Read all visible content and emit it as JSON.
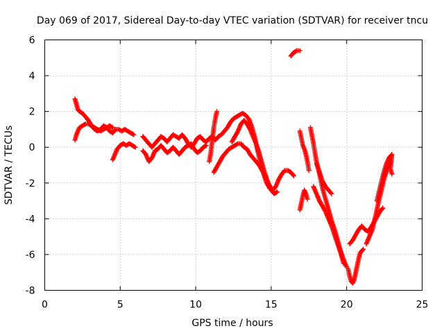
{
  "chart_data": {
    "type": "scatter",
    "title": "Day 069 of 2017, Sidereal Day-to-day VTEC variation (SDTVAR) for receiver tncu",
    "xlabel": "GPS time / hours",
    "ylabel": "SDTVAR / TECUs",
    "xlim": [
      0,
      25
    ],
    "ylim": [
      -8,
      6
    ],
    "xticks": [
      0,
      5,
      10,
      15,
      20,
      25
    ],
    "yticks": [
      -8,
      -6,
      -4,
      -2,
      0,
      2,
      4,
      6
    ],
    "xtick_labels": [
      "0",
      "5",
      "10",
      "15",
      "20",
      "25"
    ],
    "ytick_labels": [
      "-8",
      "-6",
      "-4",
      "-2",
      "0",
      "2",
      "4",
      "6"
    ],
    "grid": true,
    "legend": "none",
    "marker": "plus",
    "color": "#ff0000",
    "series": [
      {
        "points": [
          [
            2.0,
            2.7
          ],
          [
            2.1,
            2.4
          ],
          [
            2.2,
            2.1
          ],
          [
            2.3,
            2.0
          ],
          [
            2.5,
            1.9
          ],
          [
            2.7,
            1.7
          ],
          [
            2.9,
            1.5
          ],
          [
            3.1,
            1.2
          ],
          [
            3.3,
            1.0
          ],
          [
            3.5,
            0.9
          ],
          [
            3.7,
            1.0
          ],
          [
            3.9,
            1.2
          ],
          [
            4.1,
            1.1
          ],
          [
            4.3,
            0.9
          ],
          [
            4.5,
            0.8
          ],
          [
            4.7,
            1.0
          ],
          [
            4.9,
            1.0
          ],
          [
            5.1,
            0.9
          ],
          [
            5.3,
            1.0
          ],
          [
            5.5,
            0.9
          ],
          [
            5.7,
            0.8
          ],
          [
            5.9,
            0.7
          ]
        ]
      },
      {
        "points": [
          [
            2.0,
            0.4
          ],
          [
            2.1,
            0.7
          ],
          [
            2.2,
            0.9
          ],
          [
            2.3,
            1.1
          ],
          [
            2.5,
            1.2
          ],
          [
            2.7,
            1.3
          ],
          [
            2.9,
            1.3
          ],
          [
            3.1,
            1.2
          ],
          [
            3.3,
            1.1
          ],
          [
            3.5,
            1.0
          ],
          [
            3.7,
            0.9
          ],
          [
            3.9,
            1.0
          ],
          [
            4.1,
            1.1
          ],
          [
            4.3,
            1.2
          ],
          [
            4.5,
            1.1
          ]
        ]
      },
      {
        "points": [
          [
            4.5,
            -0.7
          ],
          [
            4.6,
            -0.5
          ],
          [
            4.7,
            -0.3
          ],
          [
            4.8,
            -0.1
          ],
          [
            5.0,
            0.1
          ],
          [
            5.2,
            0.2
          ],
          [
            5.4,
            0.1
          ],
          [
            5.6,
            0.2
          ],
          [
            5.8,
            0.1
          ],
          [
            6.0,
            0.0
          ]
        ]
      },
      {
        "points": [
          [
            6.5,
            0.6
          ],
          [
            6.7,
            0.4
          ],
          [
            6.9,
            0.2
          ],
          [
            7.1,
            0.0
          ],
          [
            7.3,
            0.2
          ],
          [
            7.5,
            0.4
          ],
          [
            7.7,
            0.6
          ],
          [
            7.9,
            0.5
          ],
          [
            8.1,
            0.3
          ],
          [
            8.3,
            0.5
          ],
          [
            8.5,
            0.7
          ],
          [
            8.7,
            0.6
          ],
          [
            8.9,
            0.5
          ],
          [
            9.1,
            0.7
          ],
          [
            9.3,
            0.5
          ],
          [
            9.5,
            0.2
          ],
          [
            9.7,
            0.0
          ],
          [
            9.9,
            0.2
          ],
          [
            10.1,
            0.5
          ],
          [
            10.3,
            0.6
          ],
          [
            10.5,
            0.4
          ],
          [
            10.7,
            0.3
          ],
          [
            10.9,
            0.5
          ],
          [
            11.1,
            0.6
          ],
          [
            11.3,
            0.4
          ],
          [
            11.5,
            0.6
          ],
          [
            11.7,
            0.7
          ],
          [
            11.9,
            0.9
          ],
          [
            12.1,
            1.1
          ],
          [
            12.3,
            1.4
          ],
          [
            12.5,
            1.6
          ],
          [
            12.7,
            1.7
          ],
          [
            12.9,
            1.8
          ],
          [
            13.1,
            1.9
          ],
          [
            13.3,
            1.8
          ],
          [
            13.5,
            1.6
          ],
          [
            13.7,
            1.2
          ],
          [
            13.9,
            0.6
          ],
          [
            14.1,
            -0.2
          ],
          [
            14.3,
            -0.9
          ],
          [
            14.5,
            -1.5
          ],
          [
            14.7,
            -2.0
          ],
          [
            14.9,
            -2.3
          ],
          [
            15.1,
            -2.4
          ],
          [
            15.3,
            -2.2
          ],
          [
            15.5,
            -1.8
          ],
          [
            15.7,
            -1.5
          ],
          [
            15.9,
            -1.3
          ],
          [
            16.1,
            -1.3
          ],
          [
            16.3,
            -1.4
          ],
          [
            16.5,
            -1.6
          ]
        ]
      },
      {
        "points": [
          [
            6.5,
            -0.2
          ],
          [
            6.7,
            -0.4
          ],
          [
            6.9,
            -0.8
          ],
          [
            7.1,
            -0.6
          ],
          [
            7.3,
            -0.2
          ],
          [
            7.5,
            -0.1
          ],
          [
            7.7,
            0.1
          ],
          [
            7.9,
            -0.1
          ],
          [
            8.1,
            -0.3
          ],
          [
            8.3,
            -0.2
          ],
          [
            8.5,
            0.0
          ],
          [
            8.7,
            -0.2
          ],
          [
            8.9,
            -0.4
          ],
          [
            9.1,
            -0.2
          ],
          [
            9.3,
            0.0
          ],
          [
            9.5,
            0.1
          ],
          [
            9.7,
            0.2
          ],
          [
            9.9,
            -0.1
          ],
          [
            10.1,
            -0.3
          ],
          [
            10.3,
            -0.2
          ],
          [
            10.5,
            0.0
          ],
          [
            10.7,
            0.1
          ]
        ]
      },
      {
        "points": [
          [
            10.9,
            -0.8
          ],
          [
            11.0,
            -0.3
          ],
          [
            11.1,
            0.4
          ],
          [
            11.2,
            1.1
          ],
          [
            11.3,
            1.6
          ],
          [
            11.4,
            2.0
          ]
        ]
      },
      {
        "points": [
          [
            11.2,
            -1.4
          ],
          [
            11.4,
            -1.1
          ],
          [
            11.6,
            -0.8
          ],
          [
            11.8,
            -0.5
          ],
          [
            12.0,
            -0.3
          ],
          [
            12.2,
            -0.1
          ],
          [
            12.4,
            0.0
          ],
          [
            12.6,
            0.1
          ],
          [
            12.8,
            0.2
          ],
          [
            13.0,
            0.2
          ],
          [
            13.2,
            0.0
          ],
          [
            13.4,
            -0.1
          ],
          [
            13.6,
            -0.4
          ],
          [
            13.8,
            -0.6
          ],
          [
            14.0,
            -0.8
          ],
          [
            14.2,
            -1.0
          ],
          [
            14.4,
            -1.3
          ],
          [
            14.6,
            -1.6
          ],
          [
            14.8,
            -2.0
          ],
          [
            15.0,
            -2.4
          ],
          [
            15.2,
            -2.6
          ],
          [
            15.4,
            -2.5
          ]
        ]
      },
      {
        "points": [
          [
            12.4,
            0.3
          ],
          [
            12.6,
            0.6
          ],
          [
            12.8,
            0.9
          ],
          [
            13.0,
            1.3
          ],
          [
            13.2,
            1.5
          ],
          [
            13.4,
            1.3
          ],
          [
            13.6,
            1.0
          ],
          [
            13.8,
            0.6
          ],
          [
            14.0,
            0.2
          ],
          [
            14.2,
            -0.3
          ],
          [
            14.4,
            -0.9
          ],
          [
            14.6,
            -1.5
          ],
          [
            14.8,
            -2.0
          ],
          [
            15.0,
            -2.3
          ]
        ]
      },
      {
        "points": [
          [
            16.3,
            5.1
          ],
          [
            16.5,
            5.3
          ],
          [
            16.7,
            5.4
          ],
          [
            16.9,
            5.4
          ]
        ]
      },
      {
        "points": [
          [
            16.9,
            0.9
          ],
          [
            17.0,
            0.5
          ],
          [
            17.1,
            0.1
          ],
          [
            17.2,
            -0.1
          ],
          [
            17.3,
            -0.4
          ],
          [
            17.4,
            -0.8
          ],
          [
            17.5,
            -1.3
          ]
        ]
      },
      {
        "points": [
          [
            16.9,
            -3.5
          ],
          [
            17.0,
            -3.1
          ],
          [
            17.1,
            -2.7
          ],
          [
            17.2,
            -2.4
          ],
          [
            17.3,
            -2.6
          ],
          [
            17.4,
            -2.9
          ]
        ]
      },
      {
        "points": [
          [
            17.6,
            1.1
          ],
          [
            17.8,
            0.2
          ],
          [
            18.0,
            -0.8
          ],
          [
            18.2,
            -1.5
          ],
          [
            18.4,
            -2.3
          ],
          [
            18.6,
            -2.9
          ],
          [
            18.8,
            -3.5
          ],
          [
            19.0,
            -4.1
          ],
          [
            19.2,
            -4.6
          ],
          [
            19.4,
            -5.2
          ],
          [
            19.6,
            -5.8
          ],
          [
            19.8,
            -6.3
          ],
          [
            20.0,
            -6.7
          ]
        ]
      },
      {
        "points": [
          [
            17.8,
            -2.2
          ],
          [
            18.0,
            -2.6
          ],
          [
            18.2,
            -3.0
          ],
          [
            18.4,
            -3.3
          ],
          [
            18.6,
            -3.6
          ],
          [
            18.8,
            -4.0
          ],
          [
            19.0,
            -4.4
          ],
          [
            19.2,
            -4.9
          ],
          [
            19.4,
            -5.4
          ],
          [
            19.6,
            -5.9
          ],
          [
            19.8,
            -6.5
          ]
        ]
      },
      {
        "points": [
          [
            18.0,
            -0.9
          ],
          [
            18.2,
            -1.4
          ],
          [
            18.4,
            -1.9
          ],
          [
            18.6,
            -2.2
          ],
          [
            18.8,
            -2.4
          ],
          [
            19.0,
            -2.6
          ]
        ]
      },
      {
        "points": [
          [
            20.1,
            -6.8
          ],
          [
            20.2,
            -7.2
          ],
          [
            20.3,
            -7.5
          ],
          [
            20.4,
            -7.6
          ],
          [
            20.5,
            -7.4
          ],
          [
            20.6,
            -7.0
          ],
          [
            20.7,
            -6.6
          ],
          [
            20.8,
            -6.2
          ],
          [
            20.9,
            -5.9
          ],
          [
            21.0,
            -5.8
          ],
          [
            21.1,
            -5.7
          ]
        ]
      },
      {
        "points": [
          [
            20.2,
            -5.4
          ],
          [
            20.4,
            -5.2
          ],
          [
            20.6,
            -4.9
          ],
          [
            20.8,
            -4.6
          ],
          [
            21.0,
            -4.4
          ],
          [
            21.2,
            -4.6
          ],
          [
            21.4,
            -4.7
          ],
          [
            21.6,
            -4.5
          ],
          [
            21.8,
            -4.2
          ],
          [
            22.0,
            -3.9
          ],
          [
            22.2,
            -3.6
          ],
          [
            22.4,
            -3.4
          ]
        ]
      },
      {
        "points": [
          [
            21.3,
            -5.4
          ],
          [
            21.5,
            -5.0
          ],
          [
            21.7,
            -4.6
          ],
          [
            21.9,
            -3.9
          ],
          [
            22.1,
            -3.1
          ],
          [
            22.3,
            -2.4
          ],
          [
            22.5,
            -1.7
          ],
          [
            22.7,
            -1.2
          ],
          [
            22.9,
            -0.8
          ]
        ]
      },
      {
        "points": [
          [
            22.0,
            -3.0
          ],
          [
            22.2,
            -2.3
          ],
          [
            22.4,
            -1.6
          ],
          [
            22.6,
            -1.0
          ],
          [
            22.8,
            -0.6
          ],
          [
            23.0,
            -0.4
          ],
          [
            22.9,
            -1.2
          ],
          [
            23.0,
            -1.5
          ]
        ]
      }
    ]
  }
}
